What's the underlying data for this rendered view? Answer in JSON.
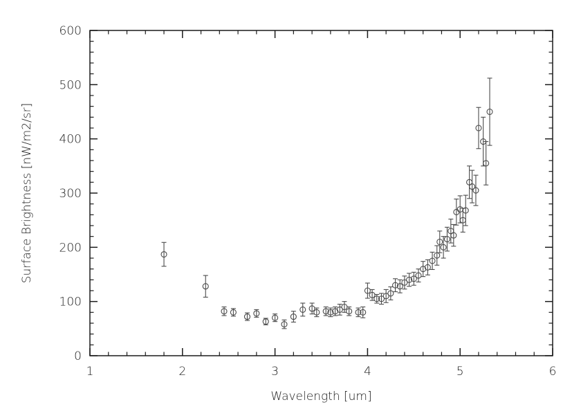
{
  "figure": {
    "background": "#ffffff",
    "axis_color": "#1a1a1a",
    "marker_color": "#4a4a4a"
  },
  "chart_data": {
    "type": "scatter",
    "title": "",
    "xlabel": "Wavelength [um]",
    "ylabel": "Surface Brightness [nW/m2/sr]",
    "xlim": [
      1,
      6
    ],
    "ylim": [
      0,
      600
    ],
    "xticks": [
      1,
      2,
      3,
      4,
      5,
      6
    ],
    "yticks": [
      0,
      100,
      200,
      300,
      400,
      500,
      600
    ],
    "x_minor_divisions": 5,
    "y_minor_divisions": 5,
    "grid": false,
    "legend": "none",
    "marker": "open-circle",
    "error_bars": "y",
    "points": [
      [
        1.8,
        187,
        22
      ],
      [
        2.25,
        128,
        20
      ],
      [
        2.45,
        82,
        8
      ],
      [
        2.55,
        80,
        7
      ],
      [
        2.7,
        72,
        7
      ],
      [
        2.8,
        78,
        7
      ],
      [
        2.9,
        63,
        6
      ],
      [
        3.0,
        70,
        7
      ],
      [
        3.1,
        58,
        8
      ],
      [
        3.2,
        72,
        10
      ],
      [
        3.3,
        85,
        12
      ],
      [
        3.4,
        87,
        10
      ],
      [
        3.45,
        80,
        8
      ],
      [
        3.55,
        82,
        8
      ],
      [
        3.6,
        80,
        8
      ],
      [
        3.65,
        82,
        8
      ],
      [
        3.7,
        85,
        10
      ],
      [
        3.75,
        90,
        10
      ],
      [
        3.8,
        82,
        8
      ],
      [
        3.9,
        80,
        8
      ],
      [
        3.95,
        80,
        10
      ],
      [
        4.0,
        120,
        14
      ],
      [
        4.05,
        112,
        10
      ],
      [
        4.1,
        105,
        8
      ],
      [
        4.15,
        105,
        10
      ],
      [
        4.2,
        110,
        12
      ],
      [
        4.25,
        115,
        12
      ],
      [
        4.3,
        130,
        12
      ],
      [
        4.35,
        128,
        12
      ],
      [
        4.4,
        135,
        12
      ],
      [
        4.45,
        140,
        12
      ],
      [
        4.5,
        142,
        12
      ],
      [
        4.55,
        148,
        12
      ],
      [
        4.6,
        160,
        14
      ],
      [
        4.65,
        163,
        14
      ],
      [
        4.7,
        175,
        16
      ],
      [
        4.75,
        185,
        18
      ],
      [
        4.78,
        210,
        20
      ],
      [
        4.82,
        200,
        20
      ],
      [
        4.86,
        215,
        22
      ],
      [
        4.9,
        230,
        22
      ],
      [
        4.93,
        222,
        20
      ],
      [
        4.96,
        265,
        24
      ],
      [
        5.0,
        270,
        25
      ],
      [
        5.03,
        250,
        22
      ],
      [
        5.06,
        268,
        28
      ],
      [
        5.1,
        320,
        30
      ],
      [
        5.13,
        312,
        30
      ],
      [
        5.17,
        305,
        28
      ],
      [
        5.2,
        420,
        38
      ],
      [
        5.25,
        395,
        45
      ],
      [
        5.28,
        355,
        40
      ],
      [
        5.32,
        450,
        62
      ]
    ]
  }
}
